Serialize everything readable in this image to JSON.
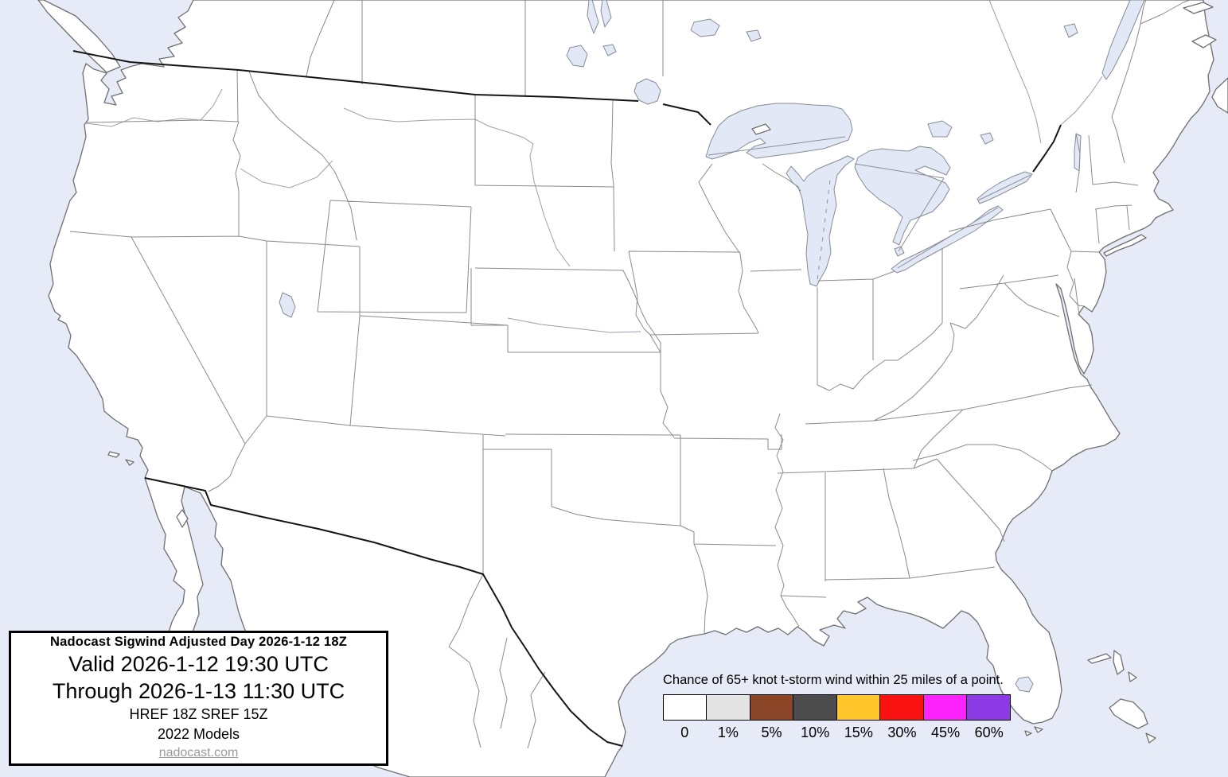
{
  "title_box": {
    "header": "Nadocast Sigwind Adjusted Day 2026-1-12 18Z",
    "valid_line": "Valid 2026-1-12 19:30 UTC",
    "through_line": "Through 2026-1-13 11:30 UTC",
    "models_line": "HREF 18Z SREF 15Z",
    "models_year_line": "2022 Models",
    "website": "nadocast.com"
  },
  "legend": {
    "title": "Chance of 65+ knot t-storm wind within 25 miles of a point.",
    "entries": [
      {
        "label": "0",
        "color": "#FFFFFF"
      },
      {
        "label": "1%",
        "color": "#E4E4E4"
      },
      {
        "label": "5%",
        "color": "#8B4527"
      },
      {
        "label": "10%",
        "color": "#4C4C4C"
      },
      {
        "label": "15%",
        "color": "#FFC72C"
      },
      {
        "label": "30%",
        "color": "#FA1212"
      },
      {
        "label": "45%",
        "color": "#FB22FB"
      },
      {
        "label": "60%",
        "color": "#8C3AE3"
      }
    ]
  },
  "map": {
    "water_color": "#E7EAF7",
    "lake_color": "#E3E8F7",
    "land_color": "#FFFFFF",
    "state_border_color": "#8A8A8A",
    "coast_color": "#6F6F6F",
    "national_border_color": "#151515"
  }
}
